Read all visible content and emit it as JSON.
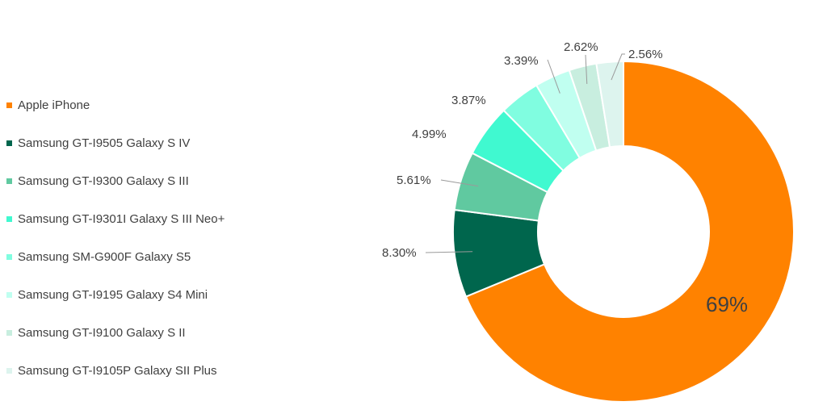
{
  "chart_data": {
    "type": "pie",
    "subtype": "donut",
    "legend_position": "left",
    "slices": [
      {
        "name": "Apple iPhone",
        "value": 69,
        "label": "69%",
        "color": "#FF8200"
      },
      {
        "name": "Samsung GT-I9505 Galaxy S IV",
        "value": 8.3,
        "label": "8.30%",
        "color": "#00664D"
      },
      {
        "name": "Samsung GT-I9300 Galaxy S III",
        "value": 5.61,
        "label": "5.61%",
        "color": "#60C9A0"
      },
      {
        "name": "Samsung GT-I9301I Galaxy S III Neo+",
        "value": 4.99,
        "label": "4.99%",
        "color": "#40F9D0"
      },
      {
        "name": "Samsung SM-G900F Galaxy S5",
        "value": 3.87,
        "label": "3.87%",
        "color": "#80FDE0"
      },
      {
        "name": "Samsung GT-I9195 Galaxy S4 Mini",
        "value": 3.39,
        "label": "3.39%",
        "color": "#C0FFF0"
      },
      {
        "name": "Samsung GT-I9100 Galaxy S II",
        "value": 2.62,
        "label": "2.62%",
        "color": "#C8EEDF"
      },
      {
        "name": "Samsung GT-I9105P Galaxy SII Plus",
        "value": 2.56,
        "label": "2.56%",
        "color": "#DDF4EE"
      }
    ]
  }
}
